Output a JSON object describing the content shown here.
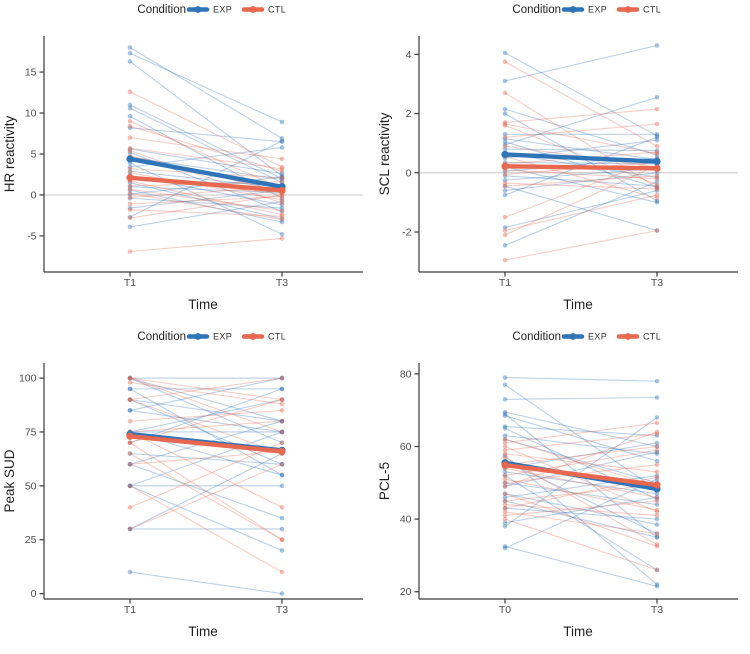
{
  "page": {
    "background": "#ffffff"
  },
  "legend": {
    "title": "Condition",
    "items": [
      {
        "label": "EXP",
        "color": "#2E74B9"
      },
      {
        "label": "CTL",
        "color": "#E7674F"
      }
    ]
  },
  "colors": {
    "EXP": "#2E74B9",
    "CTL": "#E7674F",
    "zero_line": "#C8C8C8",
    "axis": "#3A3A3A",
    "tick_text": "#4D4D4D",
    "title_text": "#1F1F1F"
  },
  "chart_data": [
    {
      "id": "hr",
      "type": "line",
      "title": "",
      "ylabel": "HR reactivity",
      "xlabel": "Time",
      "categories": [
        "T1",
        "T3"
      ],
      "yticks": [
        -5,
        0,
        5,
        10,
        15
      ],
      "ylim": [
        -9.4,
        19.4
      ],
      "zero_line": true,
      "legend_position": "top",
      "series_means": [
        {
          "name": "EXP",
          "values": [
            4.4,
            1.0
          ]
        },
        {
          "name": "CTL",
          "values": [
            2.1,
            0.55
          ]
        }
      ],
      "individual_lines": [
        [
          "EXP",
          18,
          6.9
        ],
        [
          "EXP",
          17.3,
          8.9
        ],
        [
          "EXP",
          16.3,
          2.3
        ],
        [
          "EXP",
          11,
          2
        ],
        [
          "EXP",
          10.6,
          1.5
        ],
        [
          "EXP",
          9.6,
          -0.4
        ],
        [
          "EXP",
          8.2,
          6.5
        ],
        [
          "EXP",
          5.6,
          2.6
        ],
        [
          "EXP",
          5.2,
          -2
        ],
        [
          "EXP",
          4.6,
          1.9
        ],
        [
          "EXP",
          3.9,
          -4.8
        ],
        [
          "EXP",
          3.4,
          5.8
        ],
        [
          "EXP",
          2.9,
          0.9
        ],
        [
          "EXP",
          2.4,
          -1.2
        ],
        [
          "EXP",
          1.9,
          1.2
        ],
        [
          "EXP",
          1.5,
          -2.9
        ],
        [
          "EXP",
          1,
          0.3
        ],
        [
          "EXP",
          0.6,
          -3.3
        ],
        [
          "EXP",
          0.1,
          2.2
        ],
        [
          "EXP",
          -0.4,
          -1.6
        ],
        [
          "EXP",
          -1.6,
          0.6
        ],
        [
          "EXP",
          -2.7,
          6.6
        ],
        [
          "EXP",
          -3.9,
          -0.8
        ],
        [
          "CTL",
          12.6,
          3.4
        ],
        [
          "CTL",
          9,
          0.8
        ],
        [
          "CTL",
          8.4,
          2.9
        ],
        [
          "CTL",
          7,
          4.4
        ],
        [
          "CTL",
          5.7,
          3.2
        ],
        [
          "CTL",
          5.4,
          -1
        ],
        [
          "CTL",
          4.8,
          0.4
        ],
        [
          "CTL",
          3.2,
          2.1
        ],
        [
          "CTL",
          2.7,
          -0.6
        ],
        [
          "CTL",
          2.2,
          0.1
        ],
        [
          "CTL",
          1.7,
          -2.4
        ],
        [
          "CTL",
          1.1,
          1.6
        ],
        [
          "CTL",
          0.7,
          -1.9
        ],
        [
          "CTL",
          0.2,
          -3
        ],
        [
          "CTL",
          -0.3,
          1
        ],
        [
          "CTL",
          -1.1,
          -0.2
        ],
        [
          "CTL",
          -1.8,
          -2.6
        ],
        [
          "CTL",
          -2.8,
          0
        ],
        [
          "CTL",
          -6.9,
          -5.3
        ]
      ]
    },
    {
      "id": "scl",
      "type": "line",
      "title": "",
      "ylabel": "SCL reactivity",
      "xlabel": "Time",
      "categories": [
        "T1",
        "T3"
      ],
      "yticks": [
        -2,
        0,
        2,
        4
      ],
      "ylim": [
        -3.35,
        4.62
      ],
      "zero_line": true,
      "legend_position": "top",
      "series_means": [
        {
          "name": "EXP",
          "values": [
            0.62,
            0.38
          ]
        },
        {
          "name": "CTL",
          "values": [
            0.22,
            0.15
          ]
        }
      ],
      "individual_lines": [
        [
          "EXP",
          4.05,
          1.25
        ],
        [
          "EXP",
          3.1,
          4.3
        ],
        [
          "EXP",
          2.15,
          0.6
        ],
        [
          "EXP",
          2,
          -0.95
        ],
        [
          "EXP",
          1.3,
          1.3
        ],
        [
          "EXP",
          1.15,
          0.45
        ],
        [
          "EXP",
          1.05,
          -0.5
        ],
        [
          "EXP",
          0.95,
          2.55
        ],
        [
          "EXP",
          0.8,
          0.75
        ],
        [
          "EXP",
          0.65,
          -0.15
        ],
        [
          "EXP",
          0.5,
          1.1
        ],
        [
          "EXP",
          0.35,
          0.3
        ],
        [
          "EXP",
          0.2,
          -1
        ],
        [
          "EXP",
          0.05,
          0.5
        ],
        [
          "EXP",
          -0.1,
          -0.45
        ],
        [
          "EXP",
          -0.25,
          0.15
        ],
        [
          "EXP",
          -0.45,
          -1.95
        ],
        [
          "EXP",
          -0.6,
          0
        ],
        [
          "EXP",
          -0.75,
          1.2
        ],
        [
          "EXP",
          -1.85,
          -0.6
        ],
        [
          "EXP",
          -2.45,
          -0.3
        ],
        [
          "CTL",
          3.75,
          0.9
        ],
        [
          "CTL",
          2.7,
          -0.5
        ],
        [
          "CTL",
          1.7,
          2.15
        ],
        [
          "CTL",
          1.65,
          0.65
        ],
        [
          "CTL",
          1.6,
          -0.4
        ],
        [
          "CTL",
          1.2,
          1.65
        ],
        [
          "CTL",
          0.9,
          0.2
        ],
        [
          "CTL",
          0.55,
          -0.85
        ],
        [
          "CTL",
          0.3,
          0.7
        ],
        [
          "CTL",
          0.1,
          -0.2
        ],
        [
          "CTL",
          -0.05,
          0.35
        ],
        [
          "CTL",
          -0.35,
          -0.55
        ],
        [
          "CTL",
          -0.45,
          -0.1
        ],
        [
          "CTL",
          -1.5,
          0.45
        ],
        [
          "CTL",
          -1.95,
          -0.75
        ],
        [
          "CTL",
          -2.1,
          0.25
        ],
        [
          "CTL",
          -2.95,
          -1.95
        ]
      ]
    },
    {
      "id": "sud",
      "type": "line",
      "title": "",
      "ylabel": "Peak SUD",
      "xlabel": "Time",
      "categories": [
        "T1",
        "T3"
      ],
      "yticks": [
        0,
        25,
        50,
        75,
        100
      ],
      "ylim": [
        -2.5,
        107
      ],
      "zero_line": false,
      "legend_position": "top",
      "series_means": [
        {
          "name": "EXP",
          "values": [
            74,
            66.5
          ]
        },
        {
          "name": "CTL",
          "values": [
            73,
            66
          ]
        }
      ],
      "individual_lines": [
        [
          "EXP",
          100,
          80
        ],
        [
          "EXP",
          100,
          100
        ],
        [
          "EXP",
          100,
          70
        ],
        [
          "EXP",
          95,
          95
        ],
        [
          "EXP",
          95,
          55
        ],
        [
          "EXP",
          90,
          60
        ],
        [
          "EXP",
          90,
          80
        ],
        [
          "EXP",
          85,
          100
        ],
        [
          "EXP",
          85,
          75
        ],
        [
          "EXP",
          75,
          55
        ],
        [
          "EXP",
          75,
          75
        ],
        [
          "EXP",
          75,
          90
        ],
        [
          "EXP",
          70,
          95
        ],
        [
          "EXP",
          65,
          60
        ],
        [
          "EXP",
          60,
          80
        ],
        [
          "EXP",
          60,
          35
        ],
        [
          "EXP",
          50,
          50
        ],
        [
          "EXP",
          50,
          75
        ],
        [
          "EXP",
          50,
          20
        ],
        [
          "EXP",
          30,
          30
        ],
        [
          "EXP",
          30,
          65
        ],
        [
          "EXP",
          10,
          0
        ],
        [
          "CTL",
          100,
          90
        ],
        [
          "CTL",
          98,
          88
        ],
        [
          "CTL",
          90,
          100
        ],
        [
          "CTL",
          90,
          65
        ],
        [
          "CTL",
          80,
          85
        ],
        [
          "CTL",
          75,
          40
        ],
        [
          "CTL",
          73,
          65
        ],
        [
          "CTL",
          70,
          90
        ],
        [
          "CTL",
          70,
          25
        ],
        [
          "CTL",
          60,
          66
        ],
        [
          "CTL",
          50,
          10
        ],
        [
          "CTL",
          40,
          70
        ],
        [
          "CTL",
          30,
          60
        ],
        [
          "CTL",
          100,
          75
        ],
        [
          "CTL",
          75,
          80
        ],
        [
          "CTL",
          65,
          25
        ]
      ]
    },
    {
      "id": "pcl",
      "type": "line",
      "title": "",
      "ylabel": "PCL-5",
      "xlabel": "Time",
      "categories": [
        "T0",
        "T3"
      ],
      "yticks": [
        20,
        40,
        60,
        80
      ],
      "ylim": [
        18,
        83
      ],
      "zero_line": false,
      "legend_position": "top",
      "series_means": [
        {
          "name": "EXP",
          "values": [
            55.5,
            48.3
          ]
        },
        {
          "name": "CTL",
          "values": [
            54.9,
            49.4
          ]
        }
      ],
      "individual_lines": [
        [
          "EXP",
          79,
          78
        ],
        [
          "EXP",
          77,
          48
        ],
        [
          "EXP",
          73,
          73.5
        ],
        [
          "EXP",
          69.5,
          60
        ],
        [
          "EXP",
          69,
          35
        ],
        [
          "EXP",
          68.5,
          56
        ],
        [
          "EXP",
          65.5,
          63
        ],
        [
          "EXP",
          65,
          45.5
        ],
        [
          "EXP",
          63,
          58
        ],
        [
          "EXP",
          62,
          50
        ],
        [
          "EXP",
          57.5,
          22
        ],
        [
          "EXP",
          56,
          36
        ],
        [
          "EXP",
          54,
          61
        ],
        [
          "EXP",
          53,
          47
        ],
        [
          "EXP",
          52,
          26
        ],
        [
          "EXP",
          50,
          44
        ],
        [
          "EXP",
          49,
          58.5
        ],
        [
          "EXP",
          47,
          38.5
        ],
        [
          "EXP",
          46,
          52
        ],
        [
          "EXP",
          45,
          35
        ],
        [
          "EXP",
          43,
          40
        ],
        [
          "EXP",
          39,
          46
        ],
        [
          "EXP",
          38,
          68
        ],
        [
          "EXP",
          32.5,
          21.5
        ],
        [
          "EXP",
          32,
          51
        ],
        [
          "CTL",
          62,
          49
        ],
        [
          "CTL",
          61,
          66.5
        ],
        [
          "CTL",
          60,
          42
        ],
        [
          "CTL",
          59,
          63.5
        ],
        [
          "CTL",
          58,
          53
        ],
        [
          "CTL",
          57,
          33
        ],
        [
          "CTL",
          55,
          60
        ],
        [
          "CTL",
          54,
          46
        ],
        [
          "CTL",
          52,
          59
        ],
        [
          "CTL",
          51,
          42.5
        ],
        [
          "CTL",
          50,
          55
        ],
        [
          "CTL",
          49,
          64
        ],
        [
          "CTL",
          47,
          32.5
        ],
        [
          "CTL",
          45,
          49.5
        ],
        [
          "CTL",
          44,
          41
        ],
        [
          "CTL",
          43,
          51.5
        ],
        [
          "CTL",
          42,
          36
        ],
        [
          "CTL",
          41,
          45
        ],
        [
          "CTL",
          40,
          26
        ]
      ]
    }
  ]
}
